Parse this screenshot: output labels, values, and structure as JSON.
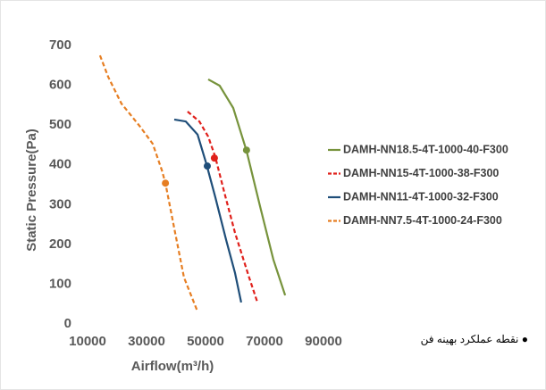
{
  "chart_data": {
    "type": "line",
    "x_label": "Airflow(m³/h)",
    "y_label": "Static Pressure(Pa)",
    "xlim": [
      10000,
      90000
    ],
    "xticks": [
      10000,
      30000,
      50000,
      70000,
      90000
    ],
    "ylim": [
      0,
      700
    ],
    "yticks": [
      0,
      100,
      200,
      300,
      400,
      500,
      600,
      700
    ],
    "grid": false,
    "legend": "right",
    "series": [
      {
        "name": "DAMH-NN18.5-4T-1000-40-F300",
        "color": "#77933c",
        "dashed": false,
        "x": [
          50900,
          54800,
          59400,
          63900,
          68500,
          73000,
          77000
        ],
        "values": [
          615,
          599,
          543,
          435,
          296,
          162,
          72
        ],
        "optimum_x": 63900,
        "optimum_y": 437
      },
      {
        "name": "DAMH-NN15-4T-1000-38-F300",
        "color": "#e0201b",
        "dashed": true,
        "x": [
          43900,
          47900,
          50900,
          53300,
          56400,
          60000,
          64800,
          67600
        ],
        "values": [
          534,
          509,
          471,
          420,
          330,
          229,
          117,
          54
        ],
        "optimum_x": 53000,
        "optimum_y": 417
      },
      {
        "name": "DAMH-NN11-4T-1000-32-F300",
        "color": "#1f4e79",
        "dashed": false,
        "x": [
          39400,
          43300,
          47300,
          50300,
          53300,
          57000,
          60000,
          62100
        ],
        "values": [
          514,
          509,
          476,
          402,
          319,
          211,
          128,
          54
        ],
        "optimum_x": 50600,
        "optimum_y": 397
      },
      {
        "name": "DAMH-NN7.5-4T-1000-24-F300",
        "color": "#e67e22",
        "dashed": true,
        "x": [
          14200,
          17000,
          21500,
          27600,
          32100,
          35200,
          36400,
          39700,
          42700,
          47300
        ],
        "values": [
          675,
          621,
          554,
          498,
          453,
          386,
          354,
          229,
          117,
          31
        ],
        "optimum_x": 36400,
        "optimum_y": 354
      }
    ],
    "note": "نقطه عملکرد بهینه فن"
  }
}
